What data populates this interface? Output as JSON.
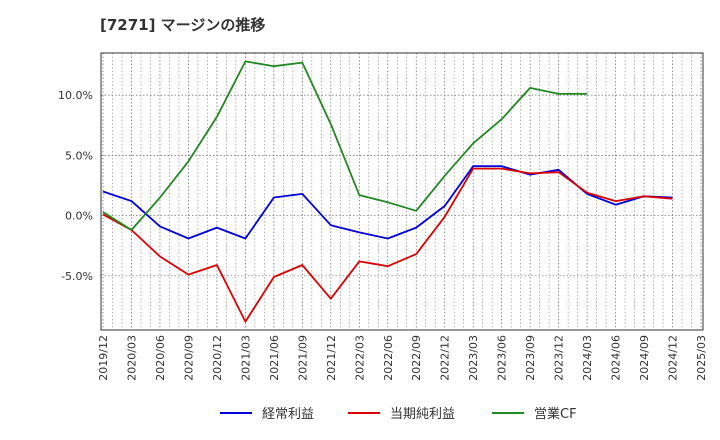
{
  "chart_data": {
    "type": "line",
    "title": "[7271]  マージンの推移",
    "x": [
      "2019/12",
      "2020/03",
      "2020/06",
      "2020/09",
      "2020/12",
      "2021/03",
      "2021/06",
      "2021/09",
      "2021/12",
      "2022/03",
      "2022/06",
      "2022/09",
      "2022/12",
      "2023/03",
      "2023/06",
      "2023/09",
      "2023/12",
      "2024/03",
      "2024/06",
      "2024/09",
      "2024/12",
      "2025/03"
    ],
    "ylim": [
      -9.5,
      13.5
    ],
    "yticks": [
      -5.0,
      0.0,
      5.0,
      10.0
    ],
    "ytick_labels": [
      "-5.0%",
      "0.0%",
      "5.0%",
      "10.0%"
    ],
    "grid": true,
    "legend_position": "bottom",
    "series": [
      {
        "name": "経常利益",
        "color": "#0000dd",
        "values": [
          2.0,
          1.2,
          -0.9,
          -1.9,
          -1.0,
          -1.9,
          1.5,
          1.8,
          -0.8,
          -1.4,
          -1.9,
          -1.0,
          0.8,
          4.1,
          4.1,
          3.4,
          3.8,
          1.8,
          0.9,
          1.6,
          1.5,
          null
        ]
      },
      {
        "name": "当期純利益",
        "color": "#dd0000",
        "values": [
          0.1,
          -1.2,
          -3.4,
          -4.9,
          -4.1,
          -8.8,
          -5.1,
          -4.1,
          -6.9,
          -3.8,
          -4.2,
          -3.2,
          -0.1,
          3.9,
          3.9,
          3.5,
          3.6,
          1.9,
          1.2,
          1.6,
          1.4,
          null
        ]
      },
      {
        "name": "営業CF",
        "color": "#228822",
        "values": [
          0.3,
          -1.2,
          1.5,
          4.5,
          8.2,
          12.8,
          12.4,
          12.7,
          7.6,
          1.7,
          1.1,
          0.4,
          3.3,
          6.0,
          8.0,
          10.6,
          10.1,
          10.1,
          null,
          null,
          null,
          null
        ]
      }
    ]
  }
}
